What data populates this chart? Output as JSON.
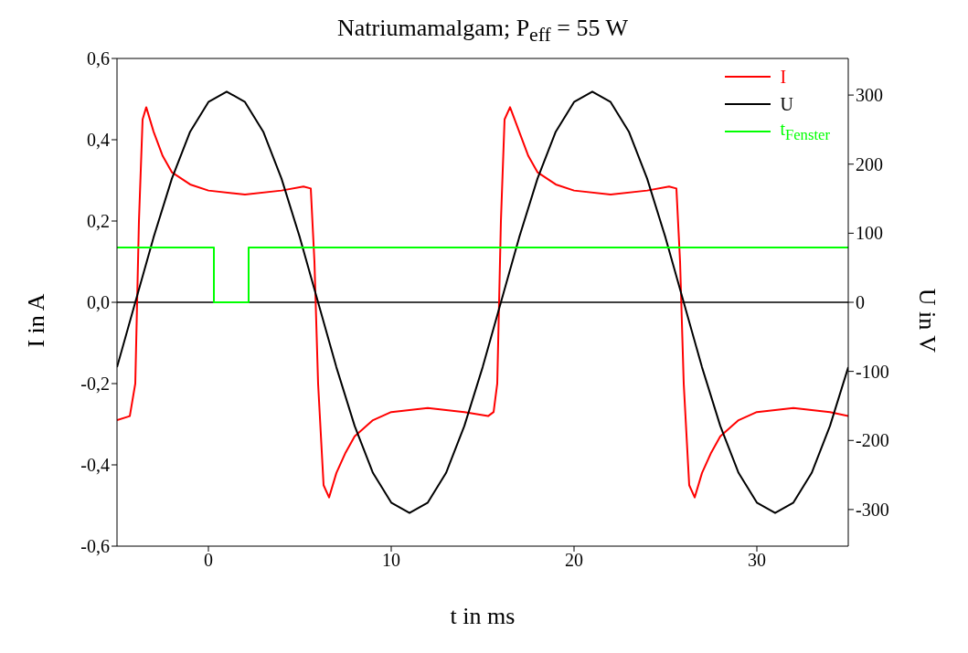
{
  "chart_data": {
    "type": "line",
    "title": "Natriumamalgam; P$_{eff}$ = 55 W",
    "xlabel": "t in ms",
    "ylabel": "I in A",
    "y2label": "U in V",
    "xlim": [
      -5,
      35
    ],
    "xticks": [
      0,
      10,
      20,
      30
    ],
    "ylim": [
      -0.6,
      0.6
    ],
    "yticks": [
      {
        "value": -0.6,
        "label": "-0,6"
      },
      {
        "value": -0.4,
        "label": "-0,4"
      },
      {
        "value": -0.2,
        "label": "-0,2"
      },
      {
        "value": 0,
        "label": "0,0"
      },
      {
        "value": 0.2,
        "label": "0,2"
      },
      {
        "value": 0.4,
        "label": "0,4"
      },
      {
        "value": 0.6,
        "label": "0,6"
      }
    ],
    "y2lim": [
      -353,
      353
    ],
    "y2ticks": [
      -300,
      -200,
      -100,
      0,
      100,
      200,
      300
    ],
    "legend": "top right",
    "marker": "none",
    "line_style": "solid",
    "ref_lines": [
      {
        "axis": "y",
        "value": 0,
        "color": "#000000"
      }
    ],
    "series": [
      {
        "name": "I",
        "color": "#ff0000",
        "x": [
          -5,
          -4.3,
          -4,
          -3.8,
          -3.6,
          -3.4,
          -3,
          -2.5,
          -2,
          -1,
          0,
          2,
          4,
          5.2,
          5.6,
          5.8,
          6,
          6.3,
          6.6,
          7,
          7.5,
          8,
          9,
          10,
          12,
          14,
          15.3,
          15.6,
          15.8,
          16,
          16.2,
          16.5,
          17,
          17.5,
          18,
          19,
          20,
          22,
          24,
          25.2,
          25.6,
          25.8,
          26,
          26.3,
          26.6,
          27,
          27.5,
          28,
          29,
          30,
          32,
          34,
          35
        ],
        "values": [
          -0.29,
          -0.28,
          -0.2,
          0.2,
          0.45,
          0.48,
          0.42,
          0.36,
          0.32,
          0.29,
          0.275,
          0.265,
          0.275,
          0.285,
          0.28,
          0.1,
          -0.2,
          -0.45,
          -0.48,
          -0.42,
          -0.37,
          -0.33,
          -0.29,
          -0.27,
          -0.26,
          -0.27,
          -0.28,
          -0.27,
          -0.2,
          0.2,
          0.45,
          0.48,
          0.42,
          0.36,
          0.32,
          0.29,
          0.275,
          0.265,
          0.275,
          0.285,
          0.28,
          0.1,
          -0.2,
          -0.45,
          -0.48,
          -0.42,
          -0.37,
          -0.33,
          -0.29,
          -0.27,
          -0.26,
          -0.27,
          -0.28
        ]
      },
      {
        "name": "U",
        "color": "#000000",
        "axis": "y2",
        "x": [
          -5,
          -4,
          -3,
          -2,
          -1,
          0,
          1,
          2,
          3,
          4,
          5,
          6,
          7,
          8,
          9,
          10,
          11,
          12,
          13,
          14,
          15,
          16,
          17,
          18,
          19,
          20,
          21,
          22,
          23,
          24,
          25,
          26,
          27,
          28,
          29,
          30,
          31,
          32,
          33,
          34,
          35
        ],
        "values": [
          -94,
          0,
          94,
          179,
          247,
          290,
          305,
          290,
          247,
          179,
          94,
          0,
          -94,
          -179,
          -247,
          -290,
          -305,
          -290,
          -247,
          -179,
          -94,
          0,
          94,
          179,
          247,
          290,
          305,
          290,
          247,
          179,
          94,
          0,
          -94,
          -179,
          -247,
          -290,
          -305,
          -290,
          -247,
          -179,
          -94
        ]
      },
      {
        "name": "t$_{Fenster}$",
        "color": "#00ff00",
        "x": [
          -5,
          0.3,
          0.3,
          2.2,
          2.2,
          35
        ],
        "values": [
          0.135,
          0.135,
          0,
          0,
          0.135,
          0.135
        ]
      }
    ]
  }
}
